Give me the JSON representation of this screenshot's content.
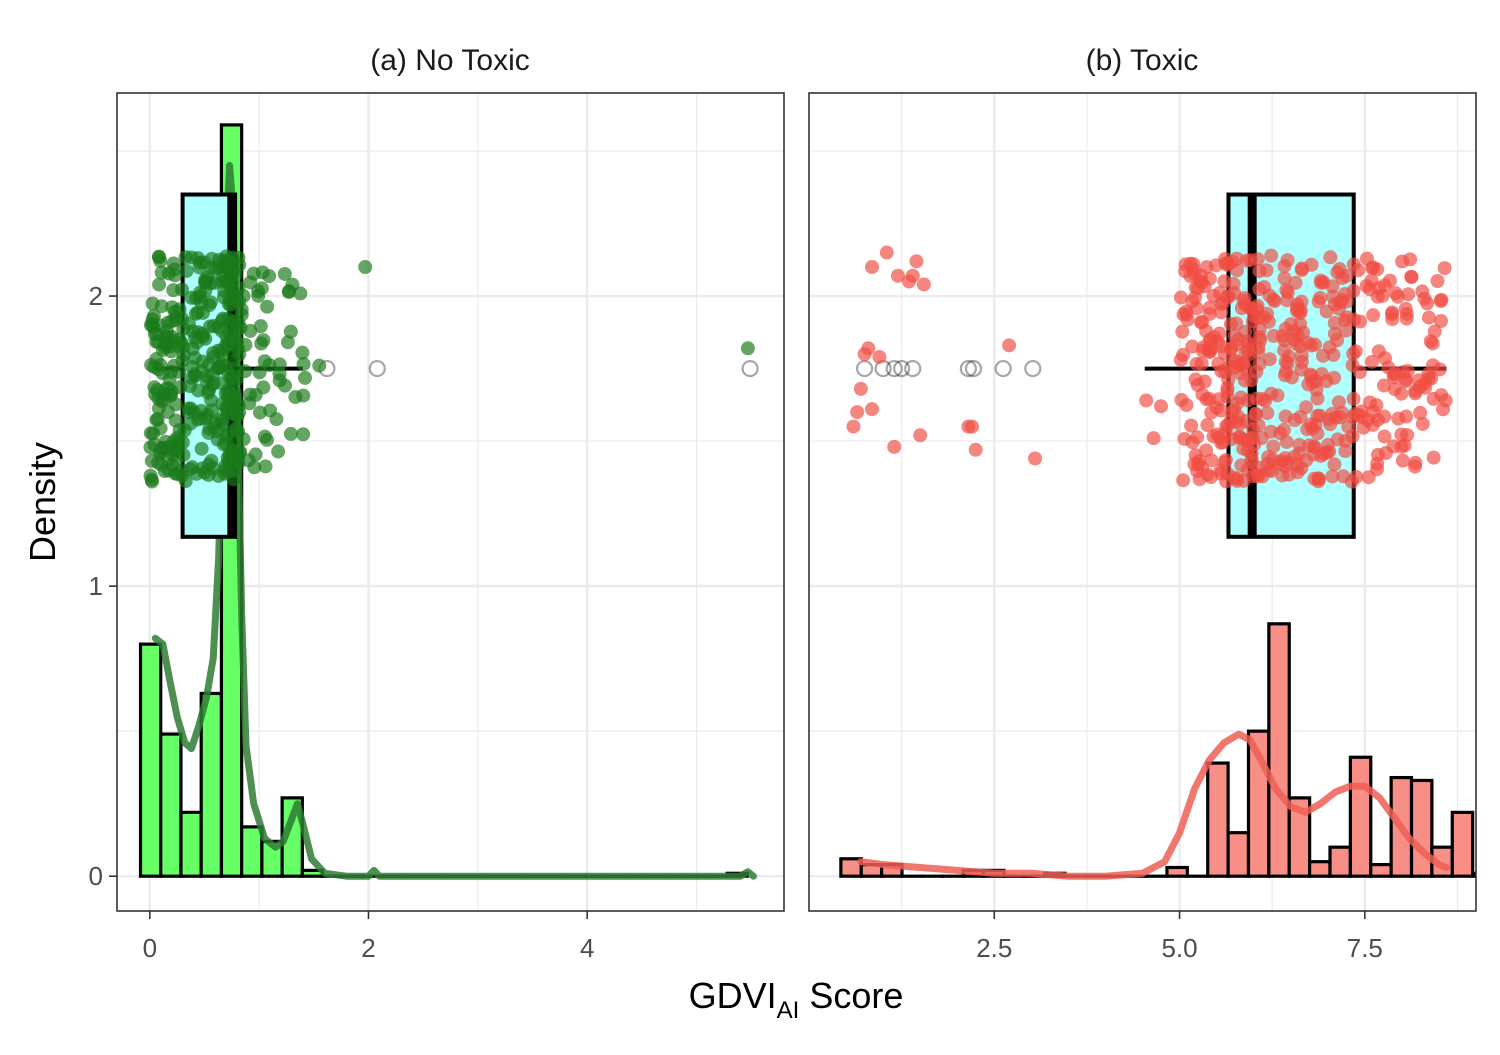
{
  "x_axis_title": {
    "main": "GDVI",
    "subscript": "AI",
    "suffix": " Score"
  },
  "y_axis_title": "Density",
  "chart_data": [
    {
      "type": "histogram-density-boxplot",
      "title": "(a) No Toxic",
      "xlim": [
        -0.3,
        5.8
      ],
      "ylim": [
        -0.12,
        2.7
      ],
      "x_ticks": [
        {
          "value": 0,
          "label": "0"
        },
        {
          "value": 2,
          "label": "2"
        },
        {
          "value": 4,
          "label": "4"
        }
      ],
      "y_ticks": [
        {
          "value": 0,
          "label": "0"
        },
        {
          "value": 1,
          "label": "1"
        },
        {
          "value": 2,
          "label": "2"
        }
      ],
      "hist_color": "#66FF66",
      "line_color": "#2E7D32",
      "point_color": "#1B7A1B",
      "hist": {
        "bin_width": 0.185,
        "start": -0.085,
        "heights": [
          0.8,
          0.49,
          0.22,
          0.63,
          2.59,
          0.17,
          0.12,
          0.27,
          0.02,
          0,
          0,
          0,
          0,
          0,
          0,
          0,
          0,
          0,
          0,
          0,
          0,
          0,
          0,
          0,
          0,
          0,
          0,
          0,
          0,
          0.01
        ]
      },
      "density": [
        [
          0.05,
          0.82
        ],
        [
          0.12,
          0.8
        ],
        [
          0.18,
          0.68
        ],
        [
          0.25,
          0.55
        ],
        [
          0.32,
          0.46
        ],
        [
          0.38,
          0.44
        ],
        [
          0.45,
          0.52
        ],
        [
          0.52,
          0.62
        ],
        [
          0.58,
          0.75
        ],
        [
          0.63,
          1.1
        ],
        [
          0.67,
          1.7
        ],
        [
          0.7,
          2.2
        ],
        [
          0.73,
          2.45
        ],
        [
          0.76,
          2.3
        ],
        [
          0.8,
          1.6
        ],
        [
          0.84,
          0.9
        ],
        [
          0.88,
          0.45
        ],
        [
          0.95,
          0.25
        ],
        [
          1.05,
          0.13
        ],
        [
          1.15,
          0.1
        ],
        [
          1.22,
          0.12
        ],
        [
          1.3,
          0.2
        ],
        [
          1.35,
          0.25
        ],
        [
          1.4,
          0.18
        ],
        [
          1.48,
          0.06
        ],
        [
          1.6,
          0.01
        ],
        [
          1.8,
          0.0
        ],
        [
          2.0,
          0.0
        ],
        [
          2.05,
          0.02
        ],
        [
          2.1,
          0.0
        ],
        [
          3.0,
          0.0
        ],
        [
          4.0,
          0.0
        ],
        [
          5.0,
          0.0
        ],
        [
          5.4,
          0.0
        ],
        [
          5.47,
          0.015
        ],
        [
          5.52,
          0.0
        ]
      ],
      "box": {
        "fill": "#AFFFFF",
        "whisker_low": 0.06,
        "q1": 0.3,
        "median": 0.75,
        "q3": 0.78,
        "whisker_high": 1.4,
        "y_bottom": 1.17,
        "y_top": 2.35,
        "y_mid": 1.75,
        "outliers": [
          1.62,
          2.08,
          5.49
        ]
      },
      "jitter": {
        "y_min": 1.36,
        "y_max": 2.14,
        "seed": 11,
        "groups": [
          [
            0.0,
            0.3,
            110
          ],
          [
            0.3,
            0.6,
            90
          ],
          [
            0.62,
            0.82,
            120
          ],
          [
            0.82,
            1.1,
            35
          ],
          [
            1.1,
            1.45,
            20
          ]
        ],
        "extra": [
          [
            1.97,
            2.1
          ],
          [
            5.47,
            1.82
          ],
          [
            1.55,
            1.76
          ]
        ]
      }
    },
    {
      "type": "histogram-density-boxplot",
      "title": "(b) Toxic",
      "xlim": [
        0.0,
        9.0
      ],
      "ylim": [
        -0.12,
        2.7
      ],
      "x_ticks": [
        {
          "value": 2.5,
          "label": "2.5"
        },
        {
          "value": 5.0,
          "label": "5.0"
        },
        {
          "value": 7.5,
          "label": "7.5"
        }
      ],
      "y_ticks": [],
      "hist_color": "#F78F86",
      "line_color": "#EE5E55",
      "point_color": "#F04C42",
      "hist": {
        "bin_width": 0.275,
        "start": 0.43,
        "heights": [
          0.06,
          0.04,
          0.04,
          0,
          0,
          0,
          0.02,
          0.02,
          0,
          0,
          0.01,
          0,
          0,
          0,
          0,
          0,
          0.03,
          0,
          0.39,
          0.15,
          0.5,
          0.87,
          0.27,
          0.05,
          0.1,
          0.41,
          0.04,
          0.34,
          0.33,
          0.1,
          0.22,
          0.01,
          0.02
        ]
      },
      "density": [
        [
          0.7,
          0.05
        ],
        [
          1.0,
          0.04
        ],
        [
          1.5,
          0.03
        ],
        [
          2.0,
          0.02
        ],
        [
          2.5,
          0.01
        ],
        [
          3.0,
          0.01
        ],
        [
          3.5,
          0.0
        ],
        [
          4.0,
          0.0
        ],
        [
          4.5,
          0.01
        ],
        [
          4.8,
          0.05
        ],
        [
          5.0,
          0.15
        ],
        [
          5.2,
          0.3
        ],
        [
          5.4,
          0.4
        ],
        [
          5.6,
          0.46
        ],
        [
          5.8,
          0.49
        ],
        [
          5.95,
          0.47
        ],
        [
          6.1,
          0.4
        ],
        [
          6.3,
          0.3
        ],
        [
          6.5,
          0.24
        ],
        [
          6.7,
          0.22
        ],
        [
          6.9,
          0.25
        ],
        [
          7.1,
          0.29
        ],
        [
          7.3,
          0.31
        ],
        [
          7.5,
          0.31
        ],
        [
          7.7,
          0.27
        ],
        [
          7.9,
          0.2
        ],
        [
          8.1,
          0.13
        ],
        [
          8.3,
          0.08
        ],
        [
          8.5,
          0.04
        ],
        [
          8.6,
          0.03
        ]
      ],
      "box": {
        "fill": "#AFFFFF",
        "whisker_low": 4.53,
        "q1": 5.66,
        "median": 5.98,
        "q3": 7.35,
        "whisker_high": 8.6,
        "y_bottom": 1.17,
        "y_top": 2.35,
        "y_mid": 1.75,
        "outliers": [
          0.75,
          1.0,
          1.15,
          1.25,
          1.4,
          2.15,
          2.22,
          2.62,
          3.02
        ]
      },
      "jitter": {
        "y_min": 1.36,
        "y_max": 2.14,
        "seed": 29,
        "groups": [
          [
            5.0,
            5.6,
            90
          ],
          [
            5.6,
            6.1,
            110
          ],
          [
            6.1,
            6.7,
            80
          ],
          [
            6.7,
            7.4,
            90
          ],
          [
            7.4,
            8.6,
            100
          ]
        ],
        "extra": [
          [
            0.85,
            2.1
          ],
          [
            1.05,
            2.15
          ],
          [
            1.2,
            2.07
          ],
          [
            1.45,
            2.12
          ],
          [
            1.55,
            2.04
          ],
          [
            1.4,
            2.07
          ],
          [
            0.8,
            1.82
          ],
          [
            0.95,
            1.79
          ],
          [
            0.7,
            1.68
          ],
          [
            0.65,
            1.6
          ],
          [
            0.85,
            1.61
          ],
          [
            0.6,
            1.55
          ],
          [
            1.5,
            1.52
          ],
          [
            1.15,
            1.48
          ],
          [
            2.2,
            1.55
          ],
          [
            2.15,
            1.55
          ],
          [
            2.25,
            1.47
          ],
          [
            2.7,
            1.83
          ],
          [
            3.05,
            1.44
          ],
          [
            4.55,
            1.64
          ],
          [
            4.75,
            1.62
          ],
          [
            4.65,
            1.51
          ],
          [
            1.35,
            2.05
          ],
          [
            0.75,
            1.8
          ]
        ]
      }
    }
  ]
}
